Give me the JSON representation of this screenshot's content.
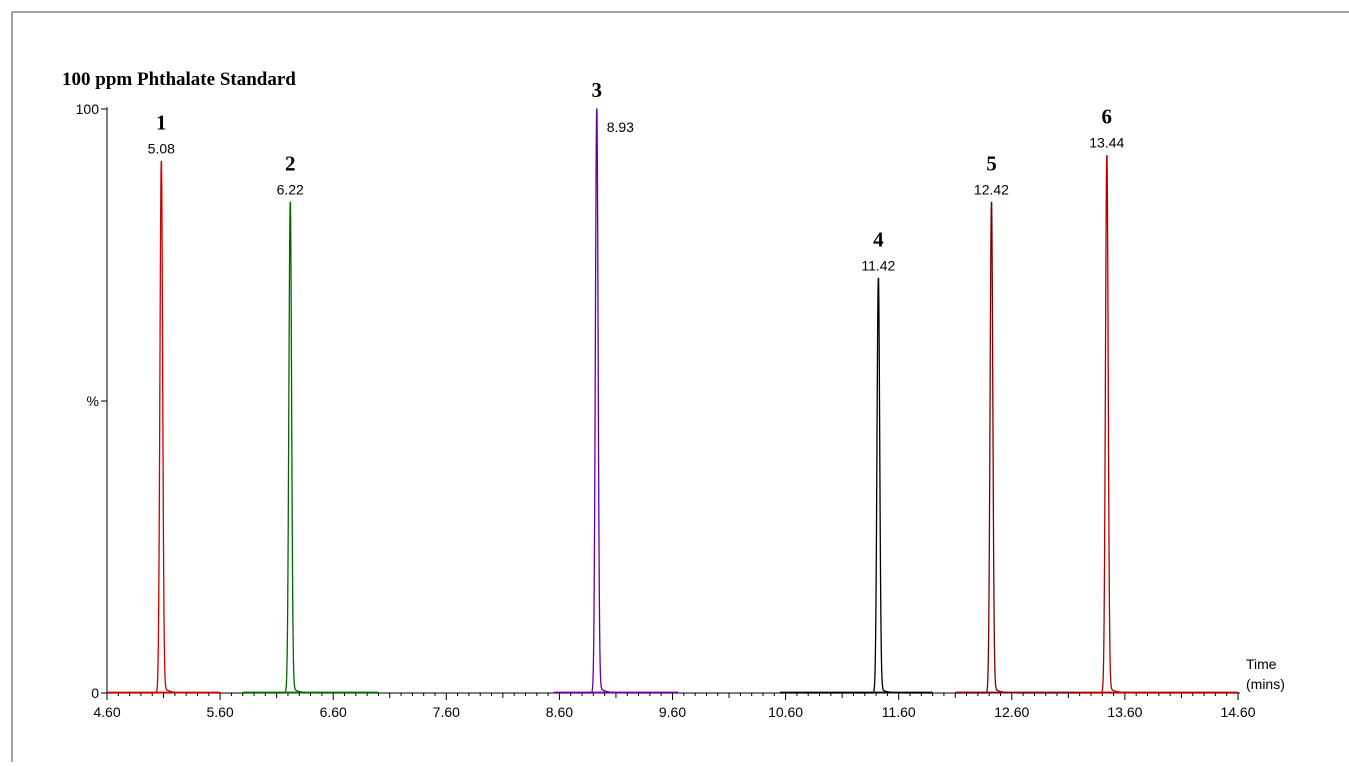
{
  "chart_data": {
    "type": "line",
    "title": "100 ppm Phthalate Standard",
    "ylabel": "%",
    "xlabel": "Time\n(mins)",
    "xlabel_lines": [
      "Time",
      "(mins)"
    ],
    "xlim": [
      4.6,
      14.6
    ],
    "ylim": [
      0,
      100
    ],
    "x_ticks": [
      "4.60",
      "5.60",
      "6.60",
      "7.60",
      "8.60",
      "9.60",
      "10.60",
      "11.60",
      "12.60",
      "13.60",
      "14.60"
    ],
    "y_ticks": [
      {
        "value": 0,
        "label": "0"
      },
      {
        "value": 50,
        "label": "%"
      },
      {
        "value": 100,
        "label": "100"
      }
    ],
    "grid": false,
    "peaks": [
      {
        "label": "1",
        "rt": 5.08,
        "rt_label": "5.08",
        "height": 91,
        "color": "#cc0000",
        "range": [
          4.6,
          5.6
        ]
      },
      {
        "label": "2",
        "rt": 6.22,
        "rt_label": "6.22",
        "height": 84,
        "color": "#006600",
        "range": [
          5.8,
          7.0
        ]
      },
      {
        "label": "3",
        "rt": 8.93,
        "rt_label": "8.93",
        "height": 100,
        "color": "#660099",
        "range": [
          8.55,
          9.65
        ]
      },
      {
        "label": "4",
        "rt": 11.42,
        "rt_label": "11.42",
        "height": 71,
        "color": "#000000",
        "range": [
          10.55,
          11.9
        ]
      },
      {
        "label": "5",
        "rt": 12.42,
        "rt_label": "12.42",
        "height": 84,
        "color": "#800000",
        "range": [
          12.1,
          13.2
        ]
      },
      {
        "label": "6",
        "rt": 13.44,
        "rt_label": "13.44",
        "height": 92,
        "color": "#b00000",
        "range": [
          13.2,
          14.6
        ]
      }
    ]
  }
}
